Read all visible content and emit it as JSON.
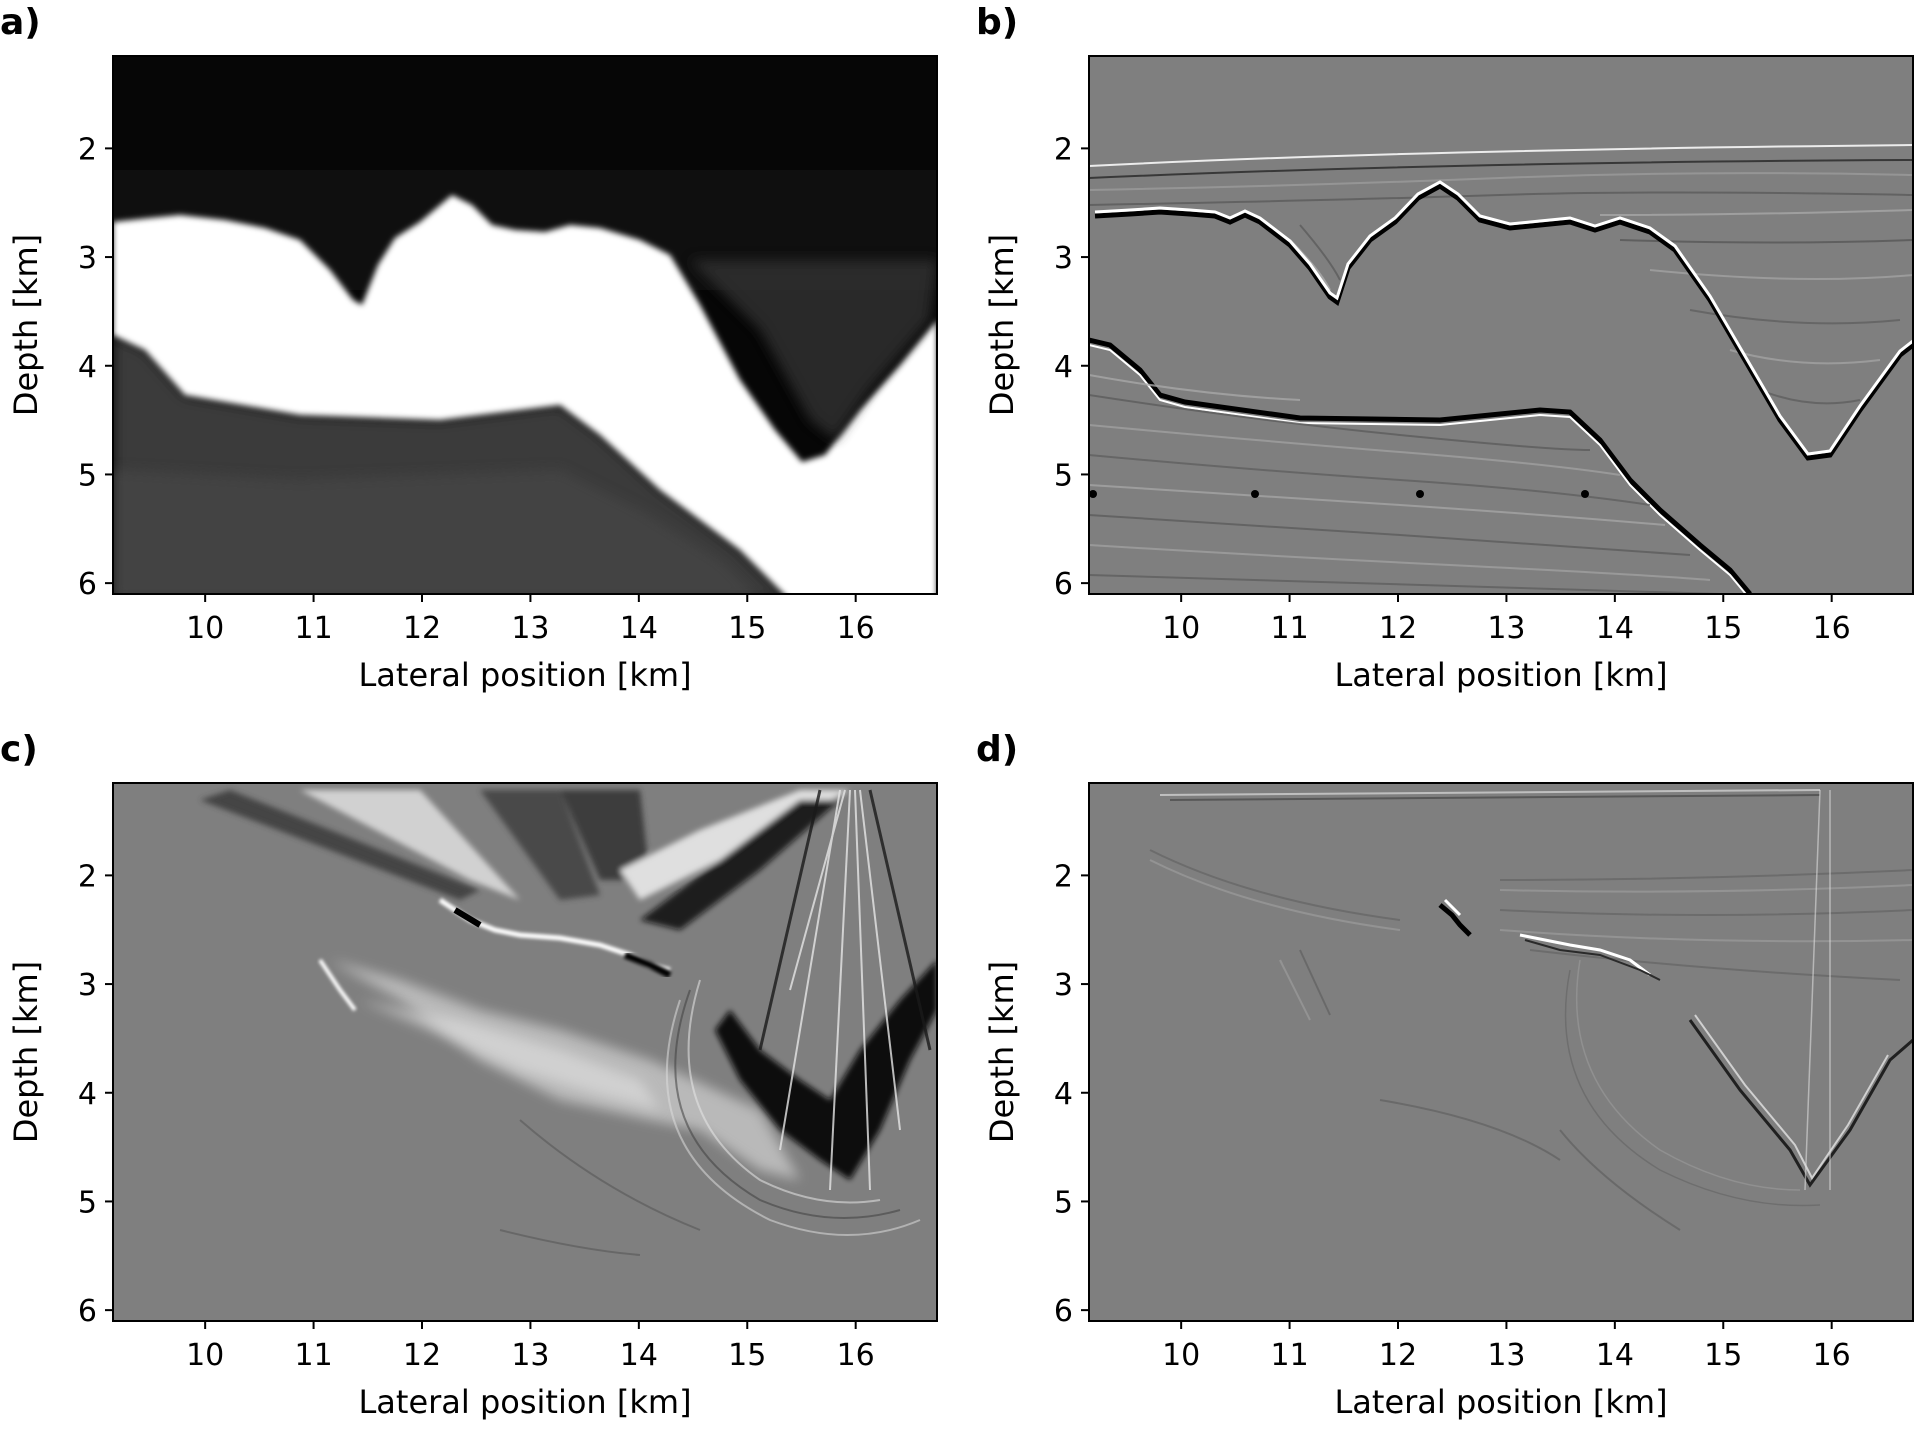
{
  "panels": [
    {
      "id": "a",
      "letter": "a)",
      "kind": "velocity-model",
      "xlabel": "Lateral position [km]",
      "ylabel": "Depth [km]"
    },
    {
      "id": "b",
      "letter": "b)",
      "kind": "reflectivity",
      "xlabel": "Lateral position [km]",
      "ylabel": "Depth [km]"
    },
    {
      "id": "c",
      "letter": "c)",
      "kind": "image-artifacts",
      "xlabel": "Lateral position [km]",
      "ylabel": "Depth [km]"
    },
    {
      "id": "d",
      "letter": "d)",
      "kind": "image-refined",
      "xlabel": "Lateral position [km]",
      "ylabel": "Depth [km]"
    }
  ],
  "axes": {
    "x_ticks": [
      10,
      11,
      12,
      13,
      14,
      15,
      16
    ],
    "y_ticks": [
      2,
      3,
      4,
      5,
      6
    ],
    "xlim": [
      9.15,
      16.75
    ],
    "ylim": [
      1.15,
      6.1
    ]
  },
  "colors": {
    "colormap": "grayscale",
    "background": "#ffffff"
  }
}
